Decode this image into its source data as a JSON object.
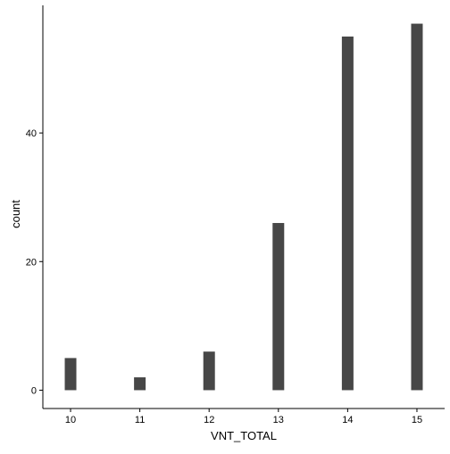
{
  "chart_data": {
    "type": "bar",
    "categories": [
      "10",
      "11",
      "12",
      "13",
      "14",
      "15"
    ],
    "x": [
      10,
      11,
      12,
      13,
      14,
      15
    ],
    "values": [
      5,
      2,
      6,
      26,
      55,
      57
    ],
    "title": "",
    "xlabel": "VNT_TOTAL",
    "ylabel": "count",
    "xlim": [
      9.6,
      15.4
    ],
    "ylim": [
      -2.85,
      59.85
    ],
    "yticks": [
      0,
      20,
      40
    ],
    "ytick_labels": [
      "0",
      "20",
      "40"
    ],
    "xtick_labels": [
      "10",
      "11",
      "12",
      "13",
      "14",
      "15"
    ],
    "grid": false,
    "legend": "none",
    "bar_color": "#474747",
    "axis_color": "#000000"
  }
}
